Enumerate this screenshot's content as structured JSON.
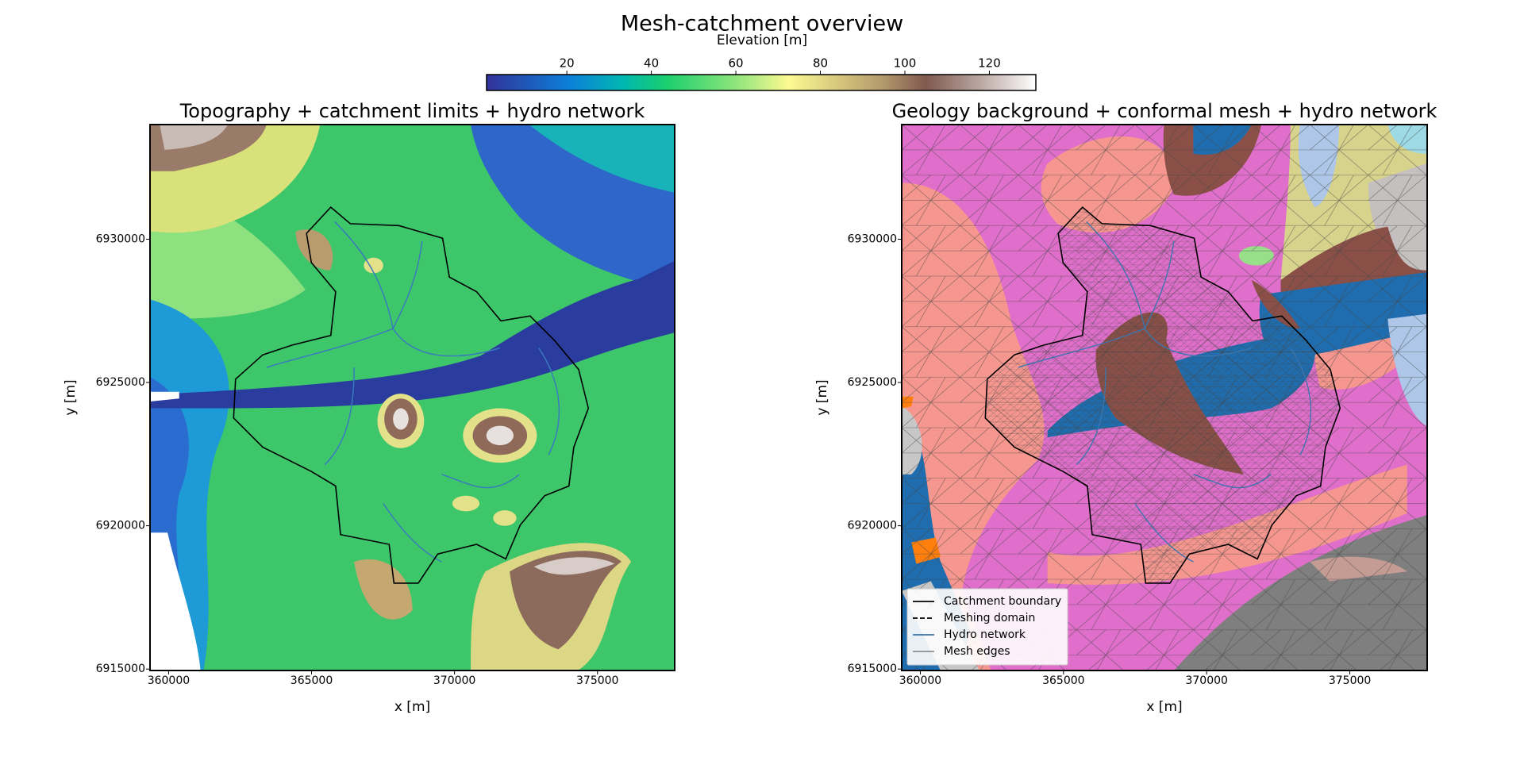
{
  "title": "Mesh-catchment overview",
  "colorbar": {
    "label": "Elevation [m]",
    "lim": [
      1,
      131
    ],
    "ticks": [
      20,
      40,
      60,
      80,
      100,
      120
    ]
  },
  "chart_data": [
    {
      "type": "map",
      "title": "Topography + catchment limits + hydro network",
      "xlabel": "x [m]",
      "ylabel": "y [m]",
      "xlim": [
        359350,
        377700
      ],
      "ylim": [
        6914950,
        6934000
      ],
      "xticks": [
        360000,
        365000,
        370000,
        375000
      ],
      "yticks": [
        6915000,
        6920000,
        6925000,
        6930000
      ]
    },
    {
      "type": "map",
      "title": "Geology background + conformal mesh + hydro network",
      "xlabel": "x [m]",
      "ylabel": "y [m]",
      "xlim": [
        359350,
        377700
      ],
      "ylim": [
        6914950,
        6934000
      ],
      "xticks": [
        360000,
        365000,
        370000,
        375000
      ],
      "yticks": [
        6915000,
        6920000,
        6925000,
        6930000
      ],
      "legend": {
        "corner": "lower left",
        "entries": [
          {
            "name": "Catchment boundary",
            "color": "#000000",
            "style": "solid"
          },
          {
            "name": "Meshing domain",
            "color": "#000000",
            "style": "dashed"
          },
          {
            "name": "Hydro network",
            "color": "#3b75af",
            "style": "solid"
          },
          {
            "name": "Mesh edges",
            "color": "#444444",
            "style": "solid"
          }
        ]
      }
    }
  ]
}
